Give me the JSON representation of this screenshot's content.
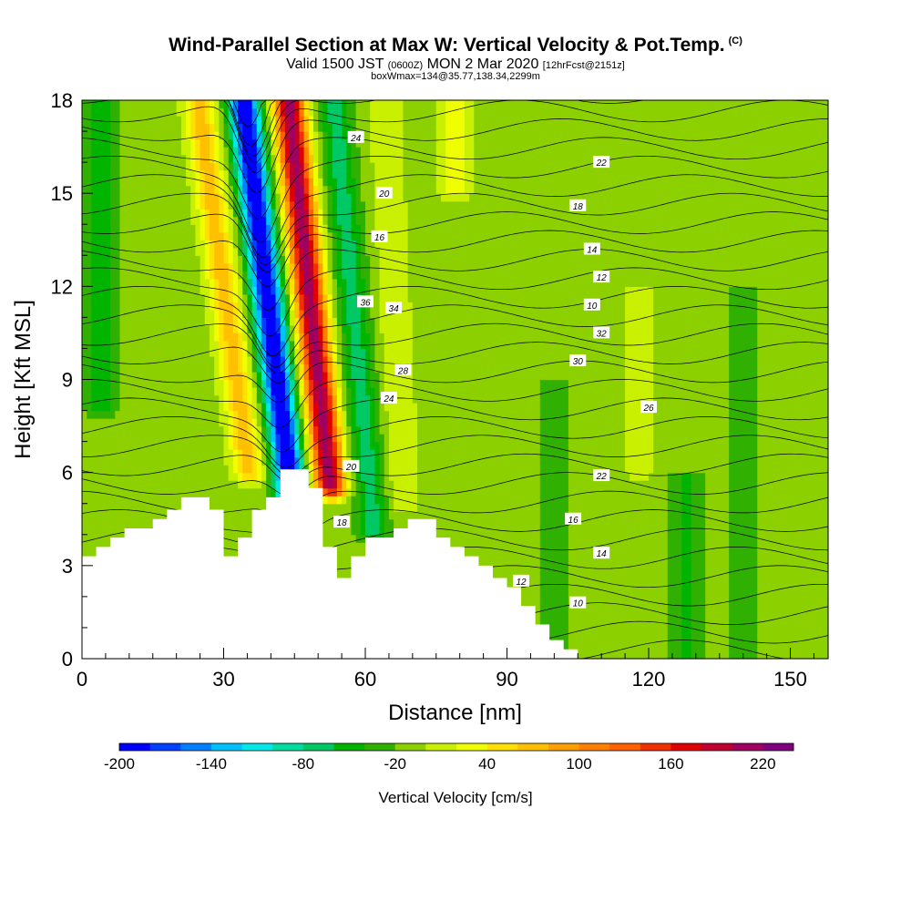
{
  "title": {
    "main": "Wind-Parallel Section at Max W: Vertical Velocity & Pot.Temp.",
    "copyright": "(C)",
    "valid_prefix": "Valid 1500 JST",
    "valid_zulu": "(0600Z)",
    "valid_date": "MON 2 Mar 2020",
    "forecast": "[12hrFcst@2151z]",
    "box": "boxWmax=134@35.77,138.34,2299m"
  },
  "chart_data": {
    "type": "heatmap",
    "xlabel": "Distance [nm]",
    "ylabel": "Height [Kft MSL]",
    "xlim": [
      0,
      158
    ],
    "ylim": [
      0,
      18
    ],
    "x_ticks": [
      "0",
      "30",
      "60",
      "90",
      "120",
      "150"
    ],
    "y_ticks": [
      "0",
      "3",
      "6",
      "9",
      "12",
      "15",
      "18"
    ],
    "terrain": {
      "x": [
        0,
        3,
        6,
        9,
        12,
        15,
        18,
        21,
        24,
        27,
        30,
        33,
        36,
        39,
        42,
        45,
        48,
        51,
        54,
        57,
        60,
        63,
        66,
        69,
        72,
        75,
        78,
        81,
        84,
        87,
        90,
        93,
        96,
        99,
        102,
        105,
        158
      ],
      "height": [
        3.3,
        3.6,
        3.9,
        4.2,
        4.2,
        4.5,
        4.8,
        5.2,
        5.2,
        4.8,
        3.3,
        3.9,
        4.8,
        5.2,
        6.1,
        6.1,
        5.5,
        3.6,
        2.6,
        3.3,
        3.9,
        3.9,
        4.2,
        4.5,
        4.5,
        3.9,
        3.6,
        3.3,
        3.0,
        2.6,
        2.3,
        1.7,
        1.1,
        0.6,
        0.3,
        0.0,
        0.0
      ]
    },
    "vertical_velocity": {
      "field": "Vertical Velocity",
      "units": "cm/s",
      "background": -10,
      "features": [
        {
          "x": 30,
          "y_bottom": 6,
          "y_top": 18,
          "w": 80,
          "slope": -0.9
        },
        {
          "x": 39,
          "y_bottom": 5.2,
          "y_top": 18,
          "w": -200,
          "slope": -0.8
        },
        {
          "x": 48,
          "y_bottom": 5.5,
          "y_top": 18,
          "w": 220,
          "slope": -0.7
        },
        {
          "x": 57,
          "y_bottom": 4,
          "y_top": 18,
          "w": -60,
          "slope": -0.6
        },
        {
          "x": 66,
          "y_bottom": 5,
          "y_top": 18,
          "w": 30,
          "slope": -0.3
        },
        {
          "x": 4,
          "y_bottom": 8,
          "y_top": 18,
          "w": -40,
          "slope": 0
        },
        {
          "x": 100,
          "y_bottom": 0,
          "y_top": 9,
          "w": -30,
          "slope": 0
        },
        {
          "x": 128,
          "y_bottom": 0,
          "y_top": 6,
          "w": -35,
          "slope": 0
        },
        {
          "x": 140,
          "y_bottom": 0,
          "y_top": 12,
          "w": -25,
          "slope": 0
        },
        {
          "x": 118,
          "y_bottom": 6,
          "y_top": 12,
          "w": 20,
          "slope": 0
        },
        {
          "x": 79,
          "y_bottom": 15,
          "y_top": 18,
          "w": 40,
          "slope": 0
        }
      ]
    },
    "pot_temp_labels": [
      "10",
      "12",
      "14",
      "16",
      "18",
      "20",
      "22",
      "24",
      "26",
      "28",
      "30",
      "32",
      "34",
      "36"
    ],
    "colorbar": {
      "title": "Vertical Velocity [cm/s]",
      "ticks": [
        "-200",
        "-140",
        "-80",
        "-20",
        "40",
        "100",
        "160",
        "220"
      ],
      "min": -200,
      "max": 240,
      "step": 20,
      "colors": [
        "#0000ff",
        "#0040ff",
        "#0080ff",
        "#00c0ff",
        "#00e8e8",
        "#00dca0",
        "#00c864",
        "#00b400",
        "#30b000",
        "#8cd000",
        "#c8f000",
        "#f0ff00",
        "#ffe000",
        "#ffc000",
        "#ffa000",
        "#ff8000",
        "#ff6000",
        "#f03000",
        "#e00000",
        "#c00030",
        "#a00060",
        "#800080"
      ]
    }
  }
}
